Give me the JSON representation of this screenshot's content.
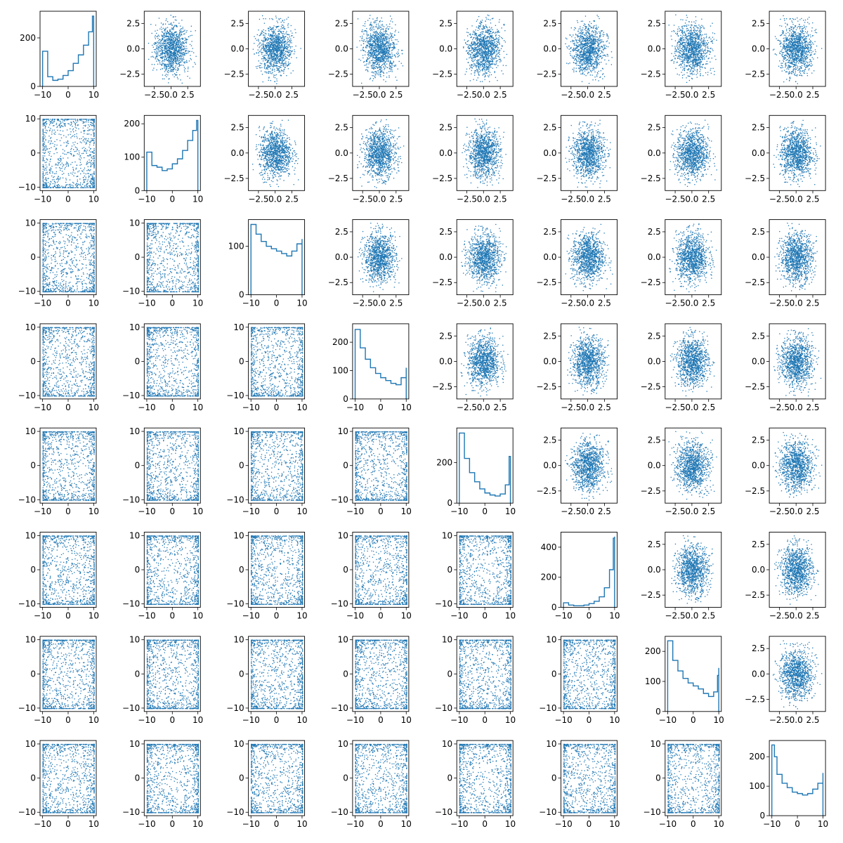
{
  "figure": {
    "background": "#ffffff",
    "color": "#1f77b4",
    "description_style": "corner-plot 8x8"
  },
  "chart_data": {
    "type": "corner-plot",
    "n": 8,
    "title": "",
    "xlabel": "",
    "ylabel": "",
    "grid": false,
    "legend": "none",
    "scatter_marker_size": 1,
    "upper": {
      "type": "scatter",
      "xlim": [
        -4,
        4.4
      ],
      "ylim": [
        -3.7,
        3.7
      ],
      "xticks": [
        -2.5,
        0.0,
        2.5
      ],
      "xtick_labels": [
        "−2.5",
        "0.0",
        "2.5"
      ],
      "yticks": [
        -2.5,
        0.0,
        2.5
      ],
      "ytick_labels": [
        "−2.5",
        "0.0",
        "2.5"
      ],
      "points_per_panel": 1100,
      "spread": 1.2
    },
    "lower": {
      "type": "scatter",
      "xlim": [
        -11,
        11
      ],
      "ylim": [
        -11,
        11
      ],
      "xticks": [
        -10,
        0,
        10
      ],
      "xtick_labels": [
        "−10",
        "0",
        "10"
      ],
      "yticks": [
        -10,
        0,
        10
      ],
      "ytick_labels": [
        "−10",
        "0",
        "10"
      ],
      "points_per_panel": 1100,
      "range": [
        -10,
        10
      ]
    },
    "diagonal": [
      {
        "type": "histogram-step",
        "xlim": [
          -11,
          11
        ],
        "ylim": [
          0,
          310
        ],
        "xticks": [
          -10,
          0,
          10
        ],
        "xtick_labels": [
          "−10",
          "0",
          "10"
        ],
        "yticks": [
          0,
          200
        ],
        "ytick_labels": [
          "0",
          "200"
        ],
        "x": [
          -10,
          -8,
          -6,
          -4,
          -2,
          0,
          2,
          4,
          6,
          8,
          9.5,
          10
        ],
        "y": [
          145,
          40,
          25,
          30,
          45,
          65,
          95,
          130,
          170,
          225,
          290,
          285
        ]
      },
      {
        "type": "histogram-step",
        "xlim": [
          -11,
          11
        ],
        "ylim": [
          0,
          225
        ],
        "xticks": [
          -10,
          0,
          10
        ],
        "xtick_labels": [
          "−10",
          "0",
          "10"
        ],
        "yticks": [
          0,
          100,
          200
        ],
        "ytick_labels": [
          "0",
          "100",
          "200"
        ],
        "x": [
          -10,
          -8,
          -6,
          -4,
          -2,
          0,
          2,
          4,
          6,
          8,
          9.5,
          10
        ],
        "y": [
          115,
          75,
          70,
          60,
          65,
          80,
          95,
          120,
          150,
          180,
          210,
          195
        ]
      },
      {
        "type": "histogram-step",
        "xlim": [
          -11,
          11
        ],
        "ylim": [
          0,
          155
        ],
        "xticks": [
          -10,
          0,
          10
        ],
        "xtick_labels": [
          "−10",
          "0",
          "10"
        ],
        "yticks": [
          0,
          100
        ],
        "ytick_labels": [
          "0",
          "100"
        ],
        "x": [
          -10,
          -8,
          -6,
          -4,
          -2,
          0,
          2,
          4,
          6,
          8,
          10
        ],
        "y": [
          145,
          125,
          110,
          100,
          95,
          90,
          85,
          80,
          90,
          105,
          115
        ]
      },
      {
        "type": "histogram-step",
        "xlim": [
          -11,
          11
        ],
        "ylim": [
          0,
          265
        ],
        "xticks": [
          -10,
          0,
          10
        ],
        "xtick_labels": [
          "−10",
          "0",
          "10"
        ],
        "yticks": [
          0,
          100,
          200
        ],
        "ytick_labels": [
          "0",
          "100",
          "200"
        ],
        "x": [
          -10,
          -8,
          -6,
          -4,
          -2,
          0,
          2,
          4,
          6,
          8,
          10
        ],
        "y": [
          245,
          180,
          140,
          110,
          90,
          75,
          65,
          55,
          50,
          75,
          110
        ]
      },
      {
        "type": "histogram-step",
        "xlim": [
          -11,
          11
        ],
        "ylim": [
          0,
          370
        ],
        "xticks": [
          -10,
          0,
          10
        ],
        "xtick_labels": [
          "−10",
          "0",
          "10"
        ],
        "yticks": [
          0,
          200
        ],
        "ytick_labels": [
          "0",
          "200"
        ],
        "x": [
          -10,
          -8,
          -6,
          -4,
          -2,
          0,
          2,
          4,
          6,
          8,
          9.5,
          10
        ],
        "y": [
          345,
          220,
          150,
          105,
          70,
          50,
          40,
          35,
          45,
          90,
          230,
          210
        ]
      },
      {
        "type": "histogram-step",
        "xlim": [
          -11,
          11
        ],
        "ylim": [
          0,
          500
        ],
        "xticks": [
          -10,
          0,
          10
        ],
        "xtick_labels": [
          "−10",
          "0",
          "10"
        ],
        "yticks": [
          0,
          200,
          400
        ],
        "ytick_labels": [
          "0",
          "200",
          "400"
        ],
        "x": [
          -10,
          -8,
          -6,
          -4,
          -2,
          0,
          2,
          4,
          6,
          8,
          9.5,
          10
        ],
        "y": [
          30,
          15,
          10,
          10,
          15,
          25,
          40,
          70,
          130,
          250,
          460,
          470
        ]
      },
      {
        "type": "histogram-step",
        "xlim": [
          -11,
          11
        ],
        "ylim": [
          0,
          250
        ],
        "xticks": [
          -10,
          0,
          10
        ],
        "xtick_labels": [
          "−10",
          "0",
          "10"
        ],
        "yticks": [
          0,
          100,
          200
        ],
        "ytick_labels": [
          "0",
          "100",
          "200"
        ],
        "x": [
          -10,
          -8,
          -6,
          -4,
          -2,
          0,
          2,
          4,
          6,
          8,
          9.5,
          10
        ],
        "y": [
          235,
          170,
          135,
          110,
          95,
          85,
          75,
          60,
          50,
          65,
          120,
          145
        ]
      },
      {
        "type": "histogram-step",
        "xlim": [
          -11,
          11
        ],
        "ylim": [
          0,
          255
        ],
        "xticks": [
          -10,
          0,
          10
        ],
        "xtick_labels": [
          "−10",
          "0",
          "10"
        ],
        "yticks": [
          0,
          100,
          200
        ],
        "ytick_labels": [
          "0",
          "100",
          "200"
        ],
        "x": [
          -10,
          -9,
          -8,
          -6,
          -4,
          -2,
          0,
          2,
          4,
          6,
          8,
          10
        ],
        "y": [
          240,
          200,
          140,
          110,
          95,
          80,
          75,
          70,
          75,
          90,
          110,
          145
        ]
      }
    ]
  }
}
